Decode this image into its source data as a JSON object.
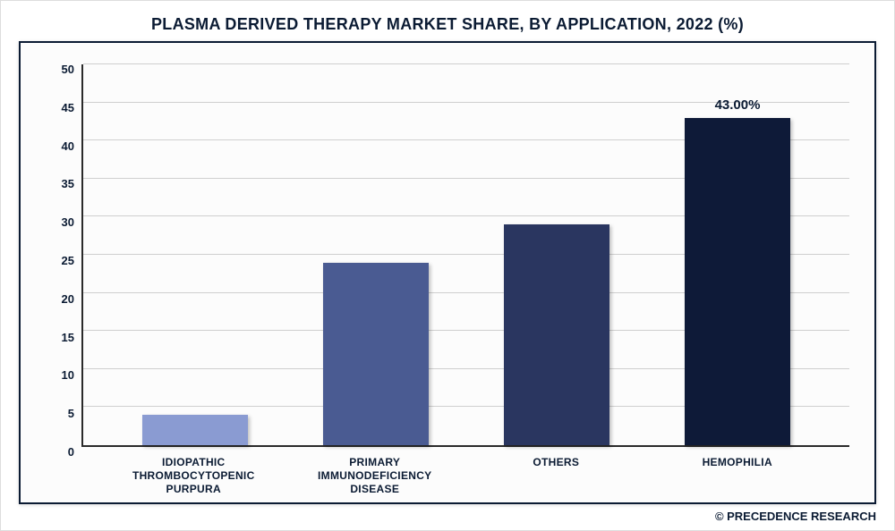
{
  "title": "PLASMA DERIVED THERAPY MARKET SHARE, BY APPLICATION, 2022 (%)",
  "footer": "© PRECEDENCE RESEARCH",
  "chart": {
    "type": "bar",
    "ylim": [
      0,
      50
    ],
    "ytick_step": 5,
    "categories": [
      "IDIOPATHIC THROMBOCYTOPENIC PURPURA",
      "PRIMARY IMMUNODEFICIENCY DISEASE",
      "OTHERS",
      "HEMOPHILIA"
    ],
    "values": [
      4,
      24,
      29,
      43
    ],
    "data_labels": [
      "",
      "",
      "",
      "43.00%"
    ],
    "bar_colors": [
      "#8a9bd2",
      "#4a5b92",
      "#2a3660",
      "#0e1a38"
    ],
    "background_color": "#fcfcfc",
    "grid_color": "#cfcfcf",
    "axis_color": "#2a2a2a",
    "label_color": "#0b1b33",
    "bar_width": 0.66,
    "title_fontsize": 18,
    "label_fontsize": 12,
    "tick_fontsize": 13
  }
}
